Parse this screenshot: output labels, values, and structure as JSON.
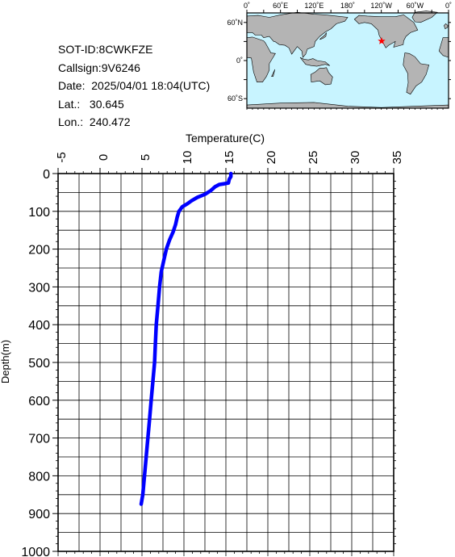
{
  "info": {
    "sot_id": "SOT-ID:8CWKFZE",
    "callsign": "Callsign:9V6246",
    "date": "Date:  2025/04/01 18:04(UTC)",
    "lat": "Lat.:   30.645",
    "lon": "Lon.:  240.472"
  },
  "map": {
    "lon_labels": [
      "0˚",
      "60˚E",
      "120˚E",
      "180˚",
      "120˚W",
      "60˚W",
      "0˚"
    ],
    "lat_labels": [
      "60˚N",
      "0˚",
      "60˚S"
    ],
    "ocean_color": "#c8f4ff",
    "land_color": "#b4b4b4",
    "marker": {
      "icon": "star-icon",
      "lon": 240.472,
      "lat": 30.645,
      "color": "#ff0000"
    }
  },
  "chart_data": {
    "type": "line",
    "xlabel": "Temperature(C)",
    "ylabel": "Depth(m)",
    "xlim": [
      -5,
      35
    ],
    "ylim": [
      0,
      1000
    ],
    "x_ticks": [
      "-5",
      "0",
      "5",
      "10",
      "15",
      "20",
      "25",
      "30",
      "35"
    ],
    "y_ticks": [
      "0",
      "100",
      "200",
      "300",
      "400",
      "500",
      "600",
      "700",
      "800",
      "900",
      "1000"
    ],
    "y_inverted": true,
    "grid": true,
    "series": [
      {
        "color": "#0000ff",
        "points": [
          {
            "t": 15.6,
            "d": 0
          },
          {
            "t": 15.6,
            "d": 8
          },
          {
            "t": 15.4,
            "d": 15
          },
          {
            "t": 15.3,
            "d": 25
          },
          {
            "t": 14.8,
            "d": 27
          },
          {
            "t": 14.2,
            "d": 29
          },
          {
            "t": 13.7,
            "d": 35
          },
          {
            "t": 13.2,
            "d": 45
          },
          {
            "t": 12.5,
            "d": 55
          },
          {
            "t": 11.6,
            "d": 63
          },
          {
            "t": 10.9,
            "d": 72
          },
          {
            "t": 10.4,
            "d": 80
          },
          {
            "t": 9.8,
            "d": 88
          },
          {
            "t": 9.4,
            "d": 100
          },
          {
            "t": 9.2,
            "d": 115
          },
          {
            "t": 9.0,
            "d": 135
          },
          {
            "t": 8.7,
            "d": 155
          },
          {
            "t": 8.3,
            "d": 175
          },
          {
            "t": 7.9,
            "d": 200
          },
          {
            "t": 7.6,
            "d": 230
          },
          {
            "t": 7.3,
            "d": 260
          },
          {
            "t": 7.1,
            "d": 300
          },
          {
            "t": 6.9,
            "d": 350
          },
          {
            "t": 6.7,
            "d": 400
          },
          {
            "t": 6.6,
            "d": 450
          },
          {
            "t": 6.5,
            "d": 500
          },
          {
            "t": 6.3,
            "d": 550
          },
          {
            "t": 6.1,
            "d": 600
          },
          {
            "t": 5.9,
            "d": 650
          },
          {
            "t": 5.7,
            "d": 700
          },
          {
            "t": 5.5,
            "d": 750
          },
          {
            "t": 5.3,
            "d": 800
          },
          {
            "t": 5.1,
            "d": 850
          },
          {
            "t": 4.9,
            "d": 875
          }
        ]
      }
    ]
  }
}
